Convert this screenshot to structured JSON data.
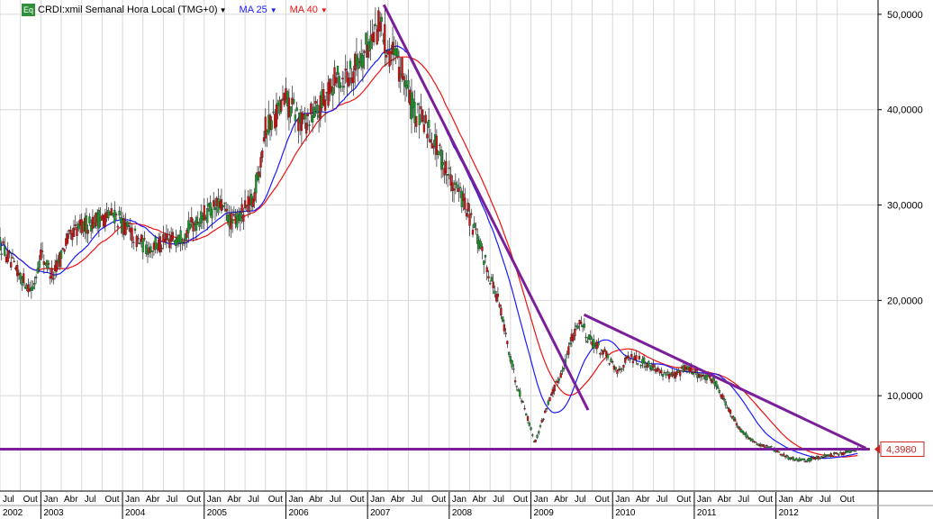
{
  "header": {
    "badge": "Eq",
    "symbol_label": "CRDI:xmil Semanal Hora Local (TMG+0)",
    "ma25_label": "MA 25",
    "ma40_label": "MA 40"
  },
  "colors": {
    "candle_up": "#1a9a2a",
    "candle_down": "#cc1111",
    "ma25": "#1a1aff",
    "ma40": "#ee1111",
    "trendline": "#7a1f9a",
    "grid": "#d8d8d8",
    "last_price_box": "#cc2222"
  },
  "chart_data": {
    "type": "candlestick",
    "title": "",
    "series_names": [
      "CRDI:xmil Semanal Hora Local (TMG+0)",
      "MA 25",
      "MA 40"
    ],
    "ylim": [
      0,
      51500
    ],
    "y_ticks": [
      "50,0000",
      "40,0000",
      "30,0000",
      "20,0000",
      "10,0000"
    ],
    "y_tick_values": [
      50000,
      40000,
      30000,
      20000,
      10000
    ],
    "last_price_label": "4,3980",
    "last_price": 4398,
    "x_months": [
      "Jul",
      "Out",
      "Jan",
      "Abr",
      "Jul",
      "Out",
      "Jan",
      "Abr",
      "Jul",
      "Out",
      "Jan",
      "Abr",
      "Jul",
      "Out",
      "Jan",
      "Abr",
      "Jul",
      "Out",
      "Jan",
      "Abr",
      "Jul",
      "Out",
      "Jan",
      "Abr",
      "Jul",
      "Out",
      "Jan",
      "Abr",
      "Jul",
      "Out",
      "Jan",
      "Abr",
      "Jul",
      "Out",
      "Jan",
      "Abr",
      "Jul",
      "Out",
      "Jan",
      "Abr",
      "Jul",
      "Out"
    ],
    "x_years": [
      "2002",
      "2003",
      "2004",
      "2005",
      "2006",
      "2007",
      "2008",
      "2009",
      "2010",
      "2011",
      "2012"
    ],
    "x_range": [
      "2002-07",
      "2012-12"
    ],
    "price_path": [
      [
        2002.5,
        26000
      ],
      [
        2002.7,
        23000
      ],
      [
        2002.9,
        21000
      ],
      [
        2003.0,
        25000
      ],
      [
        2003.15,
        22500
      ],
      [
        2003.3,
        26000
      ],
      [
        2003.45,
        27500
      ],
      [
        2003.7,
        28500
      ],
      [
        2003.9,
        29000
      ],
      [
        2004.1,
        27000
      ],
      [
        2004.3,
        25500
      ],
      [
        2004.5,
        26000
      ],
      [
        2004.75,
        27000
      ],
      [
        2005.0,
        29000
      ],
      [
        2005.2,
        30000
      ],
      [
        2005.35,
        28000
      ],
      [
        2005.6,
        30500
      ],
      [
        2005.75,
        38000
      ],
      [
        2006.0,
        41000
      ],
      [
        2006.2,
        38500
      ],
      [
        2006.4,
        40000
      ],
      [
        2006.6,
        43000
      ],
      [
        2006.8,
        44000
      ],
      [
        2006.95,
        46000
      ],
      [
        2007.15,
        49000
      ],
      [
        2007.25,
        46500
      ],
      [
        2007.45,
        43500
      ],
      [
        2007.55,
        40000
      ],
      [
        2007.75,
        38000
      ],
      [
        2007.95,
        34000
      ],
      [
        2008.2,
        30000
      ],
      [
        2008.4,
        25000
      ],
      [
        2008.6,
        20000
      ],
      [
        2008.8,
        12000
      ],
      [
        2008.95,
        8000
      ],
      [
        2009.05,
        5000
      ],
      [
        2009.2,
        9000
      ],
      [
        2009.4,
        13000
      ],
      [
        2009.5,
        16000
      ],
      [
        2009.6,
        18000
      ],
      [
        2009.7,
        16000
      ],
      [
        2009.9,
        14500
      ],
      [
        2010.05,
        12500
      ],
      [
        2010.2,
        14000
      ],
      [
        2010.4,
        13500
      ],
      [
        2010.6,
        12500
      ],
      [
        2010.75,
        12000
      ],
      [
        2010.9,
        13000
      ],
      [
        2011.1,
        12000
      ],
      [
        2011.25,
        11500
      ],
      [
        2011.4,
        9000
      ],
      [
        2011.55,
        6500
      ],
      [
        2011.75,
        5000
      ],
      [
        2011.95,
        4500
      ],
      [
        2012.15,
        3500
      ],
      [
        2012.35,
        3200
      ],
      [
        2012.6,
        3700
      ],
      [
        2012.85,
        4000
      ],
      [
        2013.0,
        4398
      ]
    ],
    "trendlines": [
      {
        "from": [
          2007.2,
          51000
        ],
        "to": [
          2009.7,
          8500
        ]
      },
      {
        "from": [
          2009.65,
          18500
        ],
        "to": [
          2013.1,
          4500
        ]
      },
      {
        "from": [
          2002.5,
          4398
        ],
        "to": [
          2013.15,
          4398
        ]
      }
    ]
  }
}
